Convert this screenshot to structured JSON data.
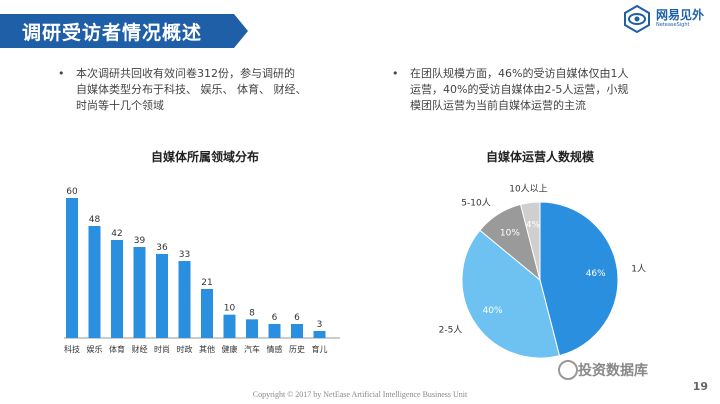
{
  "header": {
    "title": "调研受访者情况概述"
  },
  "logo": {
    "name": "网易见外",
    "sub": "NeteaseSight"
  },
  "bullets": {
    "left": {
      "marker": "•",
      "lines": [
        "本次调研共回收有效问卷312份，参与调研的",
        "自媒体类型分布于科技、 娱乐、 体育、 财经、",
        "时尚等十几个领域"
      ]
    },
    "right": {
      "marker": "•",
      "lines": [
        "在团队规模方面，46%的受访自媒体仅由1人",
        "运营，40%的受访自媒体由2-5人运营，小规",
        "模团队运营为当前自媒体运营的主流"
      ]
    }
  },
  "chart_data": [
    {
      "type": "bar",
      "title": "自媒体所属领域分布",
      "categories": [
        "科技",
        "娱乐",
        "体育",
        "财经",
        "时尚",
        "时政",
        "其他",
        "健康",
        "汽车",
        "情感",
        "历史",
        "育儿"
      ],
      "values": [
        60,
        48,
        42,
        39,
        36,
        33,
        21,
        10,
        8,
        6,
        6,
        3
      ],
      "ylim": [
        0,
        60
      ],
      "color": "#2b8fe0"
    },
    {
      "type": "pie",
      "title": "自媒体运营人数规模",
      "labels": [
        "1人",
        "2-5人",
        "5-10人",
        "10人以上"
      ],
      "values": [
        46,
        40,
        10,
        4
      ],
      "value_labels": [
        "46%",
        "40%",
        "10%",
        "4%"
      ],
      "colors": [
        "#2b8fe0",
        "#6ec2f2",
        "#9a9a9a",
        "#cfcfcf"
      ]
    }
  ],
  "watermark": "投资数据库",
  "footer": "Copyright © 2017 by NetEase Artificial Intelligence Business Unit",
  "page_number": "19"
}
